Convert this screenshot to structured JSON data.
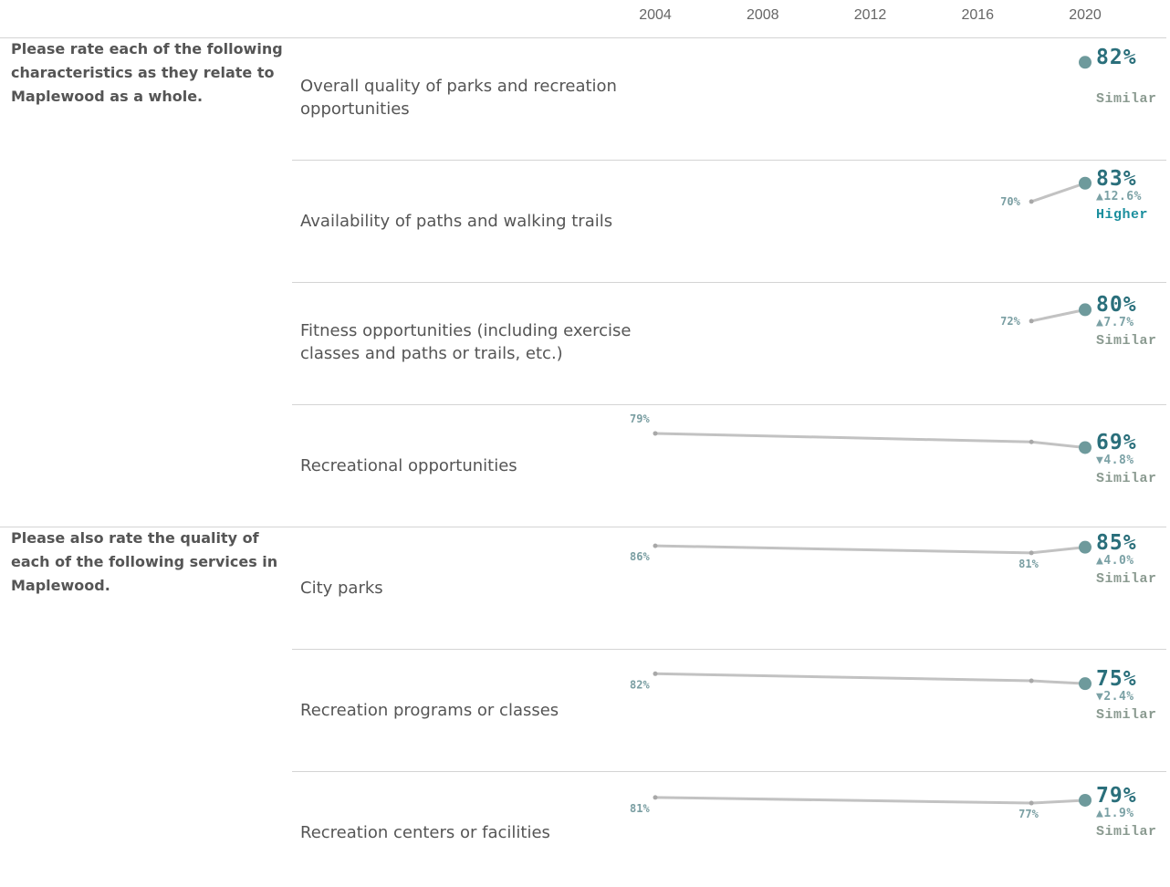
{
  "chart_data": {
    "type": "line",
    "x_ticks": [
      "2004",
      "2008",
      "2012",
      "2016",
      "2020"
    ],
    "colors": {
      "line": "#c2c2c2",
      "marker_current": "#6e9a9c",
      "marker_past": "#a8a8a8",
      "value_text": "#2a6f7b",
      "higher": "#1c8f9e",
      "similar": "#8a9a90"
    },
    "sections": [
      {
        "title": "Please rate each of the following characteristics as they relate to Maplewood as a whole.",
        "rows": [
          {
            "label": "Overall quality of parks and recreation opportunities",
            "points": [
              {
                "x": 2020,
                "y": 82
              }
            ],
            "point_labels": [],
            "current": "82%",
            "change": "",
            "comparison": "Similar",
            "comparison_kind": "similar"
          },
          {
            "label": "Availability of paths and walking trails",
            "points": [
              {
                "x": 2018,
                "y": 70
              },
              {
                "x": 2020,
                "y": 83
              }
            ],
            "point_labels": [
              "70%"
            ],
            "current": "83%",
            "change": "▲12.6%",
            "comparison": "Higher",
            "comparison_kind": "higher"
          },
          {
            "label": "Fitness opportunities (including exercise classes and paths or trails, etc.)",
            "points": [
              {
                "x": 2018,
                "y": 72
              },
              {
                "x": 2020,
                "y": 80
              }
            ],
            "point_labels": [
              "72%"
            ],
            "current": "80%",
            "change": "▲7.7%",
            "comparison": "Similar",
            "comparison_kind": "similar"
          },
          {
            "label": "Recreational opportunities",
            "points": [
              {
                "x": 2004,
                "y": 79
              },
              {
                "x": 2018,
                "y": 73
              },
              {
                "x": 2020,
                "y": 69
              }
            ],
            "point_labels": [
              "79%"
            ],
            "current": "69%",
            "change": "▼4.8%",
            "comparison": "Similar",
            "comparison_kind": "similar"
          }
        ]
      },
      {
        "title": "Please also rate the quality of each of the following services in Maplewood.",
        "rows": [
          {
            "label": "City parks",
            "points": [
              {
                "x": 2004,
                "y": 86
              },
              {
                "x": 2018,
                "y": 81
              },
              {
                "x": 2020,
                "y": 85
              }
            ],
            "point_labels": [
              "86%",
              "81%"
            ],
            "current": "85%",
            "change": "▲4.0%",
            "comparison": "Similar",
            "comparison_kind": "similar"
          },
          {
            "label": "Recreation programs or classes",
            "points": [
              {
                "x": 2004,
                "y": 82
              },
              {
                "x": 2018,
                "y": 77
              },
              {
                "x": 2020,
                "y": 75
              }
            ],
            "point_labels": [
              "82%"
            ],
            "current": "75%",
            "change": "▼2.4%",
            "comparison": "Similar",
            "comparison_kind": "similar"
          },
          {
            "label": "Recreation centers or facilities",
            "points": [
              {
                "x": 2004,
                "y": 81
              },
              {
                "x": 2018,
                "y": 77
              },
              {
                "x": 2020,
                "y": 79
              }
            ],
            "point_labels": [
              "81%",
              "77%"
            ],
            "current": "79%",
            "change": "▲1.9%",
            "comparison": "Similar",
            "comparison_kind": "similar"
          }
        ]
      }
    ]
  }
}
